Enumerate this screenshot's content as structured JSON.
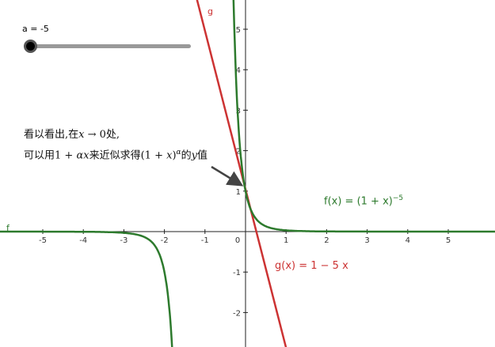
{
  "slider": {
    "label": "a = -5",
    "value": -5
  },
  "axes": {
    "x_tick_labels": [
      "-5",
      "-4",
      "-3",
      "-2",
      "-1",
      "0",
      "1",
      "2",
      "3",
      "4",
      "5"
    ],
    "y_tick_labels": [
      "5",
      "4",
      "3",
      "2",
      "1",
      "-1",
      "-2"
    ]
  },
  "curves": {
    "f": {
      "name": "f",
      "color": "#2d7a2d"
    },
    "g": {
      "name": "g",
      "color": "#cc3333"
    }
  },
  "annotation": {
    "line1_prefix": "看以看出,在",
    "line1_x": "x",
    "line1_arrow": " → 0",
    "line1_suffix": "处,",
    "line2_prefix": "可以用",
    "line2_approx_1": "1 + ",
    "line2_alpha": "α",
    "line2_x": "x",
    "line2_middle": "来近似求得",
    "line2_base": "(1 + ",
    "line2_base_x": "x",
    "line2_base_close": ")",
    "line2_exp": "α",
    "line2_de": "的",
    "line2_y": "y",
    "line2_end": "值"
  },
  "f_formula": {
    "lhs": "f(x)  =  (1 + x)",
    "exponent": "−5"
  },
  "g_formula": {
    "text": "g(x)  =  1 − 5 x"
  }
}
